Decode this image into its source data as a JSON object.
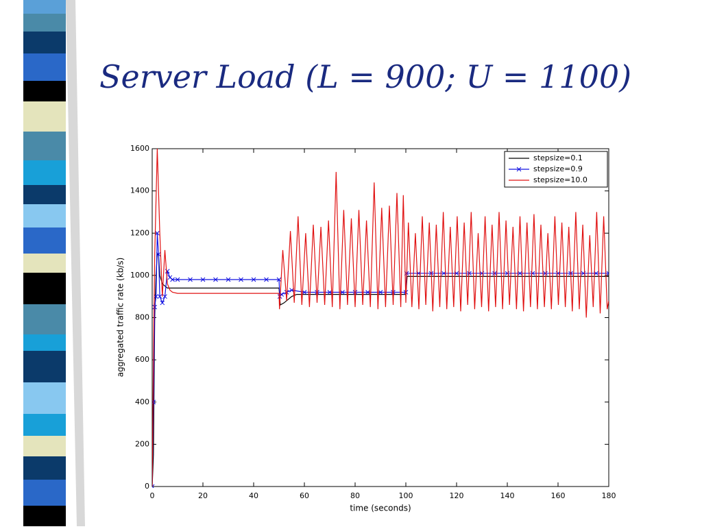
{
  "title": "Server Load (L = 900; U = 1100)",
  "chart_data": {
    "type": "line",
    "xlabel": "time (seconds)",
    "ylabel": "aggregated traffic rate (kb/s)",
    "xlim": [
      0,
      180
    ],
    "xticks": [
      0,
      20,
      40,
      60,
      80,
      100,
      120,
      140,
      160,
      180
    ],
    "ylim": [
      0,
      1600
    ],
    "yticks": [
      0,
      200,
      400,
      600,
      800,
      1000,
      1200,
      1400,
      1600
    ],
    "legend": "upper right",
    "series": [
      {
        "name": "stepsize=0.1",
        "color": "#000000",
        "x": [
          0,
          0.5,
          1,
          1.5,
          2,
          2.5,
          3,
          4,
          5,
          6,
          8,
          50,
          50.5,
          52,
          55,
          57,
          60,
          100,
          100.5,
          180
        ],
        "values": [
          0,
          150,
          800,
          1000,
          1100,
          1100,
          1000,
          960,
          950,
          940,
          940,
          940,
          860,
          870,
          900,
          910,
          910,
          910,
          995,
          995
        ]
      },
      {
        "name": "stepsize=0.9",
        "color": "#1010e0",
        "marker": "x",
        "x": [
          0,
          0.5,
          1,
          1.5,
          2,
          2.5,
          3,
          4,
          5,
          6,
          7,
          8,
          10,
          15,
          20,
          25,
          30,
          35,
          40,
          45,
          50,
          50.3,
          51,
          53,
          55,
          60,
          65,
          70,
          75,
          80,
          85,
          90,
          95,
          100,
          100.3,
          105,
          110,
          115,
          120,
          125,
          130,
          135,
          140,
          145,
          150,
          155,
          160,
          165,
          170,
          175,
          180
        ],
        "values": [
          0,
          400,
          850,
          900,
          1200,
          1100,
          900,
          870,
          900,
          1020,
          990,
          980,
          980,
          980,
          980,
          980,
          980,
          980,
          980,
          980,
          980,
          900,
          910,
          920,
          930,
          920,
          920,
          920,
          920,
          920,
          920,
          920,
          920,
          920,
          1010,
          1010,
          1010,
          1010,
          1010,
          1010,
          1010,
          1010,
          1010,
          1010,
          1010,
          1010,
          1010,
          1010,
          1010,
          1010,
          1010
        ]
      },
      {
        "name": "stepsize=10.0",
        "color": "#e01010",
        "x": [
          0,
          0.5,
          1,
          2,
          3,
          4,
          5,
          6,
          7,
          8,
          10,
          50,
          50.2,
          51.5,
          53,
          54.5,
          56,
          57.5,
          59,
          60.5,
          62,
          63.5,
          65,
          66.5,
          68,
          69.5,
          71,
          72.5,
          74,
          75.5,
          77,
          78.5,
          80,
          81.5,
          83,
          84.5,
          86,
          87.5,
          89,
          90.5,
          92,
          93.5,
          95,
          96.5,
          98,
          99,
          100,
          101,
          102.375,
          103.75,
          105.125,
          106.5,
          107.875,
          109.25,
          110.625,
          112,
          113.375,
          114.75,
          116.125,
          117.5,
          118.875,
          120.25,
          121.625,
          123,
          124.375,
          125.75,
          127.125,
          128.5,
          129.875,
          131.25,
          132.625,
          134,
          135.375,
          136.75,
          138.125,
          139.5,
          140.875,
          142.25,
          143.625,
          145,
          146.375,
          147.75,
          149.125,
          150.5,
          151.875,
          153.25,
          154.625,
          156,
          157.375,
          158.75,
          160.125,
          161.5,
          162.875,
          164.25,
          165.625,
          167,
          168.375,
          169.75,
          171.125,
          172.5,
          173.875,
          175.25,
          176.625,
          178,
          179.375,
          180
        ],
        "values": [
          0,
          600,
          1100,
          1600,
          1200,
          900,
          1120,
          960,
          930,
          920,
          915,
          915,
          840,
          1120,
          880,
          1210,
          870,
          1280,
          860,
          1200,
          850,
          1240,
          870,
          1230,
          860,
          1260,
          850,
          1490,
          840,
          1310,
          860,
          1270,
          850,
          1310,
          860,
          1260,
          850,
          1440,
          840,
          1320,
          850,
          1330,
          860,
          1390,
          850,
          1380,
          870,
          1250,
          850,
          1200,
          840,
          1280,
          860,
          1250,
          830,
          1240,
          850,
          1300,
          840,
          1230,
          850,
          1280,
          830,
          1250,
          860,
          1300,
          840,
          1200,
          850,
          1280,
          830,
          1240,
          850,
          1300,
          840,
          1260,
          860,
          1230,
          840,
          1280,
          830,
          1250,
          850,
          1290,
          840,
          1240,
          850,
          1200,
          840,
          1280,
          860,
          1250,
          850,
          1230,
          830,
          1300,
          840,
          1240,
          800,
          1190,
          850,
          1300,
          820,
          1280,
          840,
          880
        ]
      }
    ]
  }
}
